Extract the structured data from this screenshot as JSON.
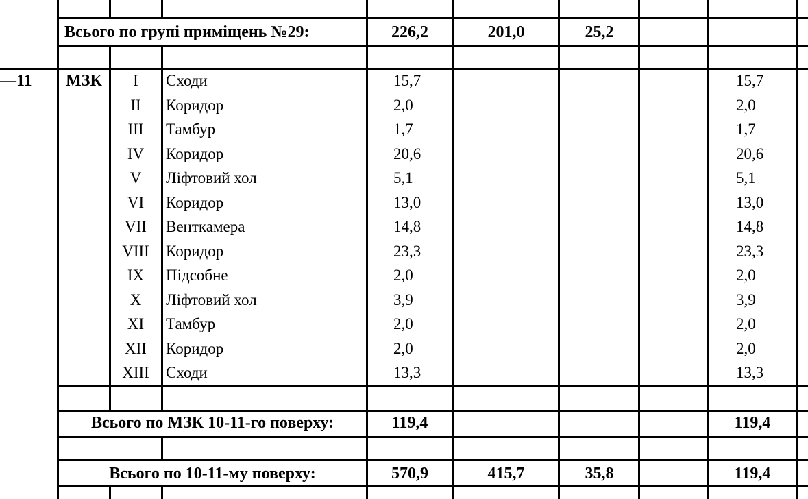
{
  "group_total": {
    "label": "Всього по групі приміщень №29:",
    "col1": "226,2",
    "col2": "201,0",
    "col3": "25,2"
  },
  "section": {
    "floor_code": "—11",
    "block": "МЗК",
    "rows": [
      {
        "num": "I",
        "name": "Сходи",
        "area": "15,7",
        "total": "15,7"
      },
      {
        "num": "II",
        "name": "Коридор",
        "area": "2,0",
        "total": "2,0"
      },
      {
        "num": "III",
        "name": "Тамбур",
        "area": "1,7",
        "total": "1,7"
      },
      {
        "num": "IV",
        "name": "Коридор",
        "area": "20,6",
        "total": "20,6"
      },
      {
        "num": "V",
        "name": "Ліфтовий хол",
        "area": "5,1",
        "total": "5,1"
      },
      {
        "num": "VI",
        "name": "Коридор",
        "area": "13,0",
        "total": "13,0"
      },
      {
        "num": "VII",
        "name": "Венткамера",
        "area": "14,8",
        "total": "14,8"
      },
      {
        "num": "VIII",
        "name": "Коридор",
        "area": "23,3",
        "total": "23,3"
      },
      {
        "num": "IX",
        "name": "Підсобне",
        "area": "2,0",
        "total": "2,0"
      },
      {
        "num": "X",
        "name": "Ліфтовий хол",
        "area": "3,9",
        "total": "3,9"
      },
      {
        "num": "XI",
        "name": "Тамбур",
        "area": "2,0",
        "total": "2,0"
      },
      {
        "num": "XII",
        "name": "Коридор",
        "area": "2,0",
        "total": "2,0"
      },
      {
        "num": "XIII",
        "name": "Сходи",
        "area": "13,3",
        "total": "13,3"
      }
    ]
  },
  "mzk_total": {
    "label": "Всього по МЗК 10-11-го поверху:",
    "col1": "119,4",
    "total": "119,4"
  },
  "floor_total": {
    "label": "Всього по 10-11-му поверху:",
    "col1": "570,9",
    "col2": "415,7",
    "col3": "35,8",
    "total": "119,4"
  }
}
